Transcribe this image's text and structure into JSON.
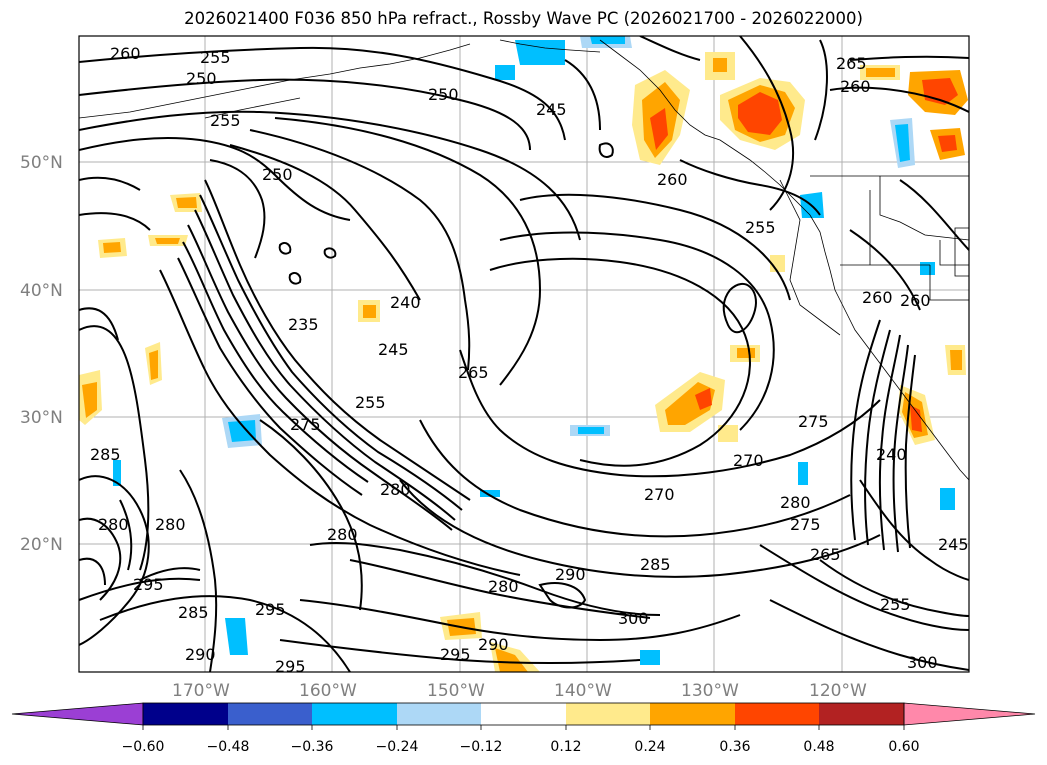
{
  "title": "2026021400 F036 850 hPa refract., Rossby Wave PC (2026021700 - 2026022000)",
  "lat_labels": [
    "50°N",
    "40°N",
    "30°N",
    "20°N"
  ],
  "lon_labels": [
    "170°W",
    "160°W",
    "150°W",
    "140°W",
    "130°W",
    "120°W"
  ],
  "contour_labels": [
    "260",
    "255",
    "250",
    "255",
    "250",
    "245",
    "265",
    "260",
    "250",
    "260",
    "255",
    "240",
    "235",
    "245",
    "265",
    "255",
    "275",
    "275",
    "270",
    "270",
    "280",
    "280",
    "275",
    "265",
    "260",
    "260",
    "240",
    "285",
    "280",
    "280",
    "280",
    "285",
    "290",
    "295",
    "280",
    "285",
    "290",
    "295",
    "290",
    "295",
    "300",
    "295",
    "300",
    "255",
    "245"
  ],
  "colorbar": {
    "ticks": [
      "−0.60",
      "−0.48",
      "−0.36",
      "−0.24",
      "−0.12",
      "0.12",
      "0.24",
      "0.36",
      "0.48",
      "0.60"
    ],
    "colors": [
      "#9b3fd4",
      "#00008b",
      "#3a5fcd",
      "#00bfff",
      "#add8f6",
      "#ffffff",
      "#ffea8c",
      "#ffa500",
      "#ff4500",
      "#b22222",
      "#ff88aa"
    ]
  }
}
